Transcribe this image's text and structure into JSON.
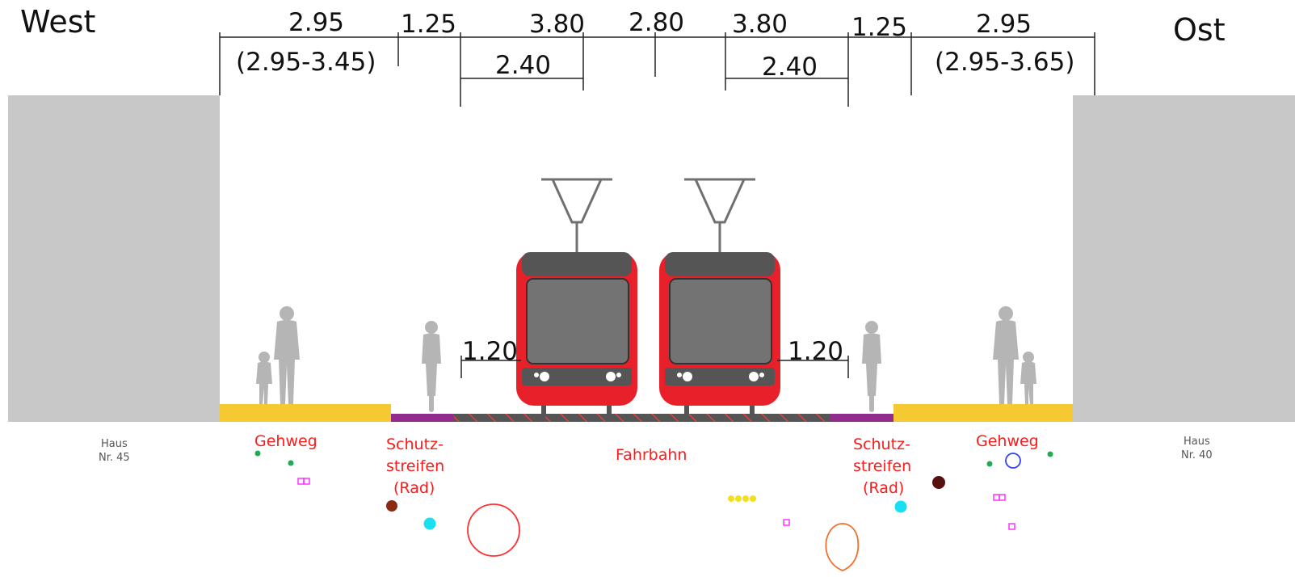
{
  "directions": {
    "west": "West",
    "east": "Ost"
  },
  "dimensions": {
    "top_row": [
      "2.95",
      "1.25",
      "3.80",
      "2.80",
      "3.80",
      "1.25",
      "2.95"
    ],
    "west_sidewalk_range": "(2.95-3.45)",
    "east_sidewalk_range": "(2.95-3.65)",
    "west_track_inner": "2.40",
    "east_track_inner": "2.40",
    "west_clearance": "1.20",
    "east_clearance": "1.20"
  },
  "zones": {
    "gehweg_west": "Gehweg",
    "schutzstreifen_west": [
      "Schutz-",
      "streifen",
      "(Rad)"
    ],
    "fahrbahn": "Fahrbahn",
    "schutzstreifen_east": [
      "Schutz-",
      "streifen",
      "(Rad)"
    ],
    "gehweg_east": "Gehweg"
  },
  "houses": {
    "west": [
      "Haus",
      "Nr. 45"
    ],
    "east": [
      "Haus",
      "Nr. 40"
    ]
  },
  "colors": {
    "building": "#c8c8c8",
    "sidewalk": "#f5c932",
    "bike_lane": "#932b8e",
    "roadway": "#555555",
    "track_hatch": "#ff3b3b",
    "tram_body": "#e8202a",
    "tram_window": "#737373",
    "label_red": "#ff1a1a"
  },
  "icons": {
    "pedestrian": "pedestrian-with-child-icon",
    "cyclist": "cyclist-icon",
    "tram": "tram-front-icon",
    "pantograph": "pantograph-icon"
  }
}
